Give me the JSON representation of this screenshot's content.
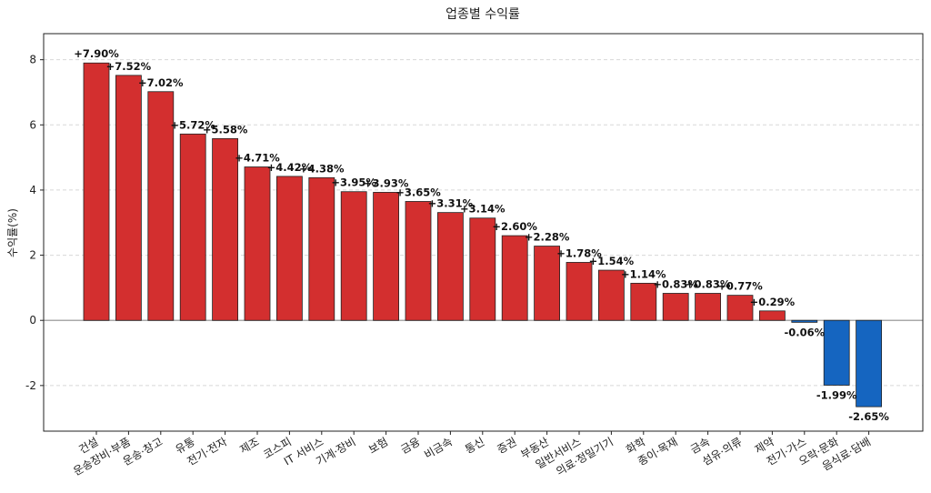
{
  "chart_data": {
    "type": "bar",
    "title": "업종별 수익률",
    "xlabel": "",
    "ylabel": "수익률(%)",
    "ylim": [
      -3.4,
      8.8
    ],
    "yticks": [
      -2,
      0,
      2,
      4,
      6,
      8
    ],
    "grid": true,
    "colors": {
      "positive": "#d32f2f",
      "negative": "#1565c0",
      "zero_line": "#aaaaaa",
      "edge": "#222222"
    },
    "categories": [
      "건설",
      "운송장비·부품",
      "운송·창고",
      "유통",
      "전기·전자",
      "제조",
      "코스피",
      "IT 서비스",
      "기계·장비",
      "보험",
      "금융",
      "비금속",
      "통신",
      "증권",
      "부동산",
      "일반서비스",
      "의료·정밀기기",
      "화학",
      "종이·목재",
      "금속",
      "섬유·의류",
      "제약",
      "전기·가스",
      "오락·문화",
      "음식료·담배"
    ],
    "values": [
      7.9,
      7.52,
      7.02,
      5.72,
      5.58,
      4.71,
      4.42,
      4.38,
      3.95,
      3.93,
      3.65,
      3.31,
      3.14,
      2.6,
      2.28,
      1.78,
      1.54,
      1.14,
      0.83,
      0.83,
      0.77,
      0.29,
      -0.06,
      -1.99,
      -2.65
    ],
    "value_labels": [
      "+7.90%",
      "+7.52%",
      "+7.02%",
      "+5.72%",
      "+5.58%",
      "+4.71%",
      "+4.42%",
      "+4.38%",
      "+3.95%",
      "+3.93%",
      "+3.65%",
      "+3.31%",
      "+3.14%",
      "+2.60%",
      "+2.28%",
      "+1.78%",
      "+1.54%",
      "+1.14%",
      "+0.83%",
      "+0.83%",
      "+0.77%",
      "+0.29%",
      "-0.06%",
      "-1.99%",
      "-2.65%"
    ]
  }
}
